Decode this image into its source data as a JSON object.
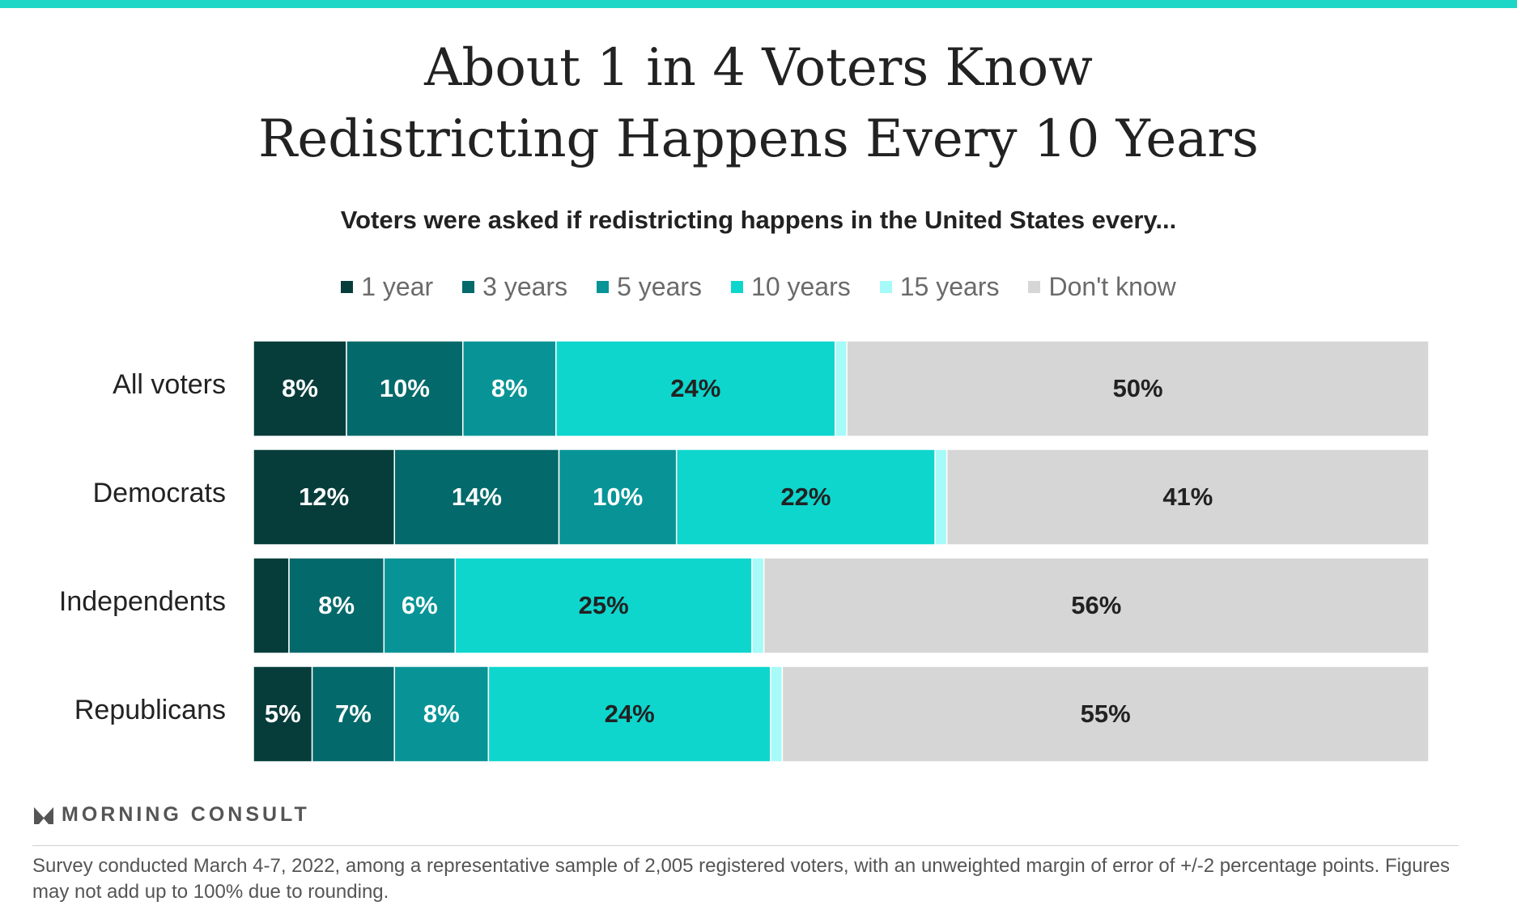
{
  "title_line1": "About 1 in 4 Voters Know",
  "title_line2": "Redistricting Happens Every 10 Years",
  "subtitle": "Voters were asked if redistricting happens in the United States every...",
  "brand": "MORNING CONSULT",
  "footnote": "Survey conducted March 4-7, 2022, among a representative sample of 2,005 registered voters, with an unweighted margin of error of +/-2 percentage points. Figures may not add up to 100% due to rounding.",
  "colors": {
    "top_bar": "#1cd6c6",
    "1 year": "#063d3b",
    "3 years": "#04696a",
    "5 years": "#089496",
    "10 years": "#0ed6cd",
    "15 years": "#a6faf7",
    "Don't know": "#d6d6d6"
  },
  "chart_data": {
    "type": "bar",
    "orientation": "horizontal",
    "stacked": true,
    "categories": [
      "All voters",
      "Democrats",
      "Independents",
      "Republicans"
    ],
    "series": [
      {
        "name": "1 year",
        "values": [
          8,
          12,
          3,
          5
        ],
        "labels": [
          "8%",
          "12%",
          "",
          "5%"
        ],
        "label_color": "#ffffff"
      },
      {
        "name": "3 years",
        "values": [
          10,
          14,
          8,
          7
        ],
        "labels": [
          "10%",
          "14%",
          "8%",
          "7%"
        ],
        "label_color": "#ffffff"
      },
      {
        "name": "5 years",
        "values": [
          8,
          10,
          6,
          8
        ],
        "labels": [
          "8%",
          "10%",
          "6%",
          "8%"
        ],
        "label_color": "#ffffff"
      },
      {
        "name": "10 years",
        "values": [
          24,
          22,
          25,
          24
        ],
        "labels": [
          "24%",
          "22%",
          "25%",
          "24%"
        ],
        "label_color": "#222222"
      },
      {
        "name": "15 years",
        "values": [
          1,
          1,
          1,
          1
        ],
        "labels": [
          "",
          "",
          "",
          ""
        ],
        "label_color": "#222222"
      },
      {
        "name": "Don't know",
        "values": [
          50,
          41,
          56,
          55
        ],
        "labels": [
          "50%",
          "41%",
          "56%",
          "55%"
        ],
        "label_color": "#222222"
      }
    ],
    "legend_position": "top-center",
    "grid": false
  }
}
